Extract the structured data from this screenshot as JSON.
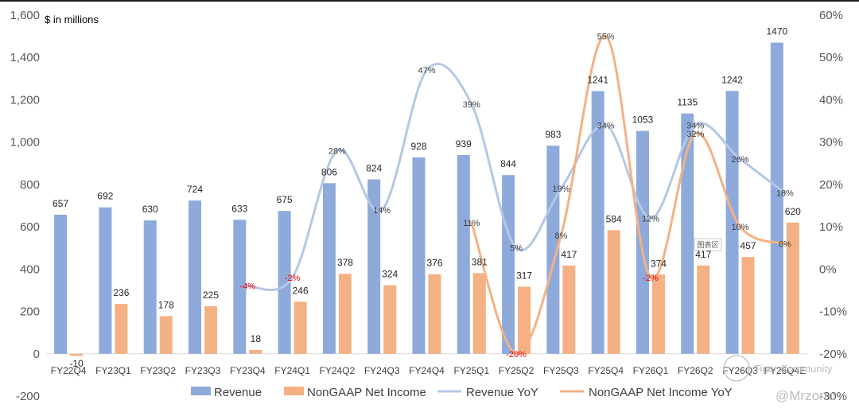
{
  "unit_label": "$ in millions",
  "plot_area_tag": "图表区",
  "watermarks": {
    "community": "Tiger Community",
    "handle": "@Mrzorro"
  },
  "colors": {
    "revenue_bar": "#8eaadb",
    "net_income_bar": "#f4b183",
    "revenue_yoy_line": "#b4c7e7",
    "net_income_yoy_line": "#f4b183",
    "negative_label": "#ff0000"
  },
  "chart_data": {
    "type": "bar",
    "categories": [
      "FY22Q4",
      "FY23Q1",
      "FY23Q2",
      "FY23Q3",
      "FY23Q4",
      "FY24Q1",
      "FY24Q2",
      "FY24Q3",
      "FY24Q4",
      "FY25Q1",
      "FY25Q2",
      "FY25Q3",
      "FY25Q4",
      "FY26Q1",
      "FY26Q2",
      "FY26Q3",
      "FY26Q4E"
    ],
    "y_left": {
      "ylim": [
        -200,
        1600
      ],
      "ticks": [
        "-200",
        "0",
        "200",
        "400",
        "600",
        "800",
        "1,000",
        "1,200",
        "1,400",
        "1,600"
      ]
    },
    "y_right": {
      "ylim": [
        -30,
        60
      ],
      "ticks": [
        "-30%",
        "-20%",
        "-10%",
        "0%",
        "10%",
        "20%",
        "30%",
        "40%",
        "50%",
        "60%"
      ]
    },
    "grid": false,
    "legend_position": "bottom",
    "series": [
      {
        "name": "Revenue",
        "kind": "bar",
        "axis": "left",
        "values": [
          657,
          692,
          630,
          724,
          633,
          675,
          806,
          824,
          928,
          939,
          844,
          983,
          1241,
          1053,
          1135,
          1242,
          1470
        ],
        "labels": [
          "657",
          "692",
          "630",
          "724",
          "633",
          "675",
          "806",
          "824",
          "928",
          "939",
          "844",
          "983",
          "1241",
          "1053",
          "1135",
          "1242",
          "1470"
        ]
      },
      {
        "name": "NonGAAP Net Income",
        "kind": "bar",
        "axis": "left",
        "values": [
          -10,
          236,
          178,
          225,
          18,
          246,
          378,
          324,
          376,
          381,
          317,
          417,
          584,
          374,
          417,
          457,
          620
        ],
        "labels": [
          "-10",
          "236",
          "178",
          "225",
          "18",
          "246",
          "378",
          "324",
          "376",
          "381",
          "317",
          "417",
          "584",
          "374",
          "417",
          "457",
          "620"
        ]
      },
      {
        "name": "Revenue YoY",
        "kind": "line",
        "axis": "right",
        "values": [
          null,
          null,
          null,
          null,
          -4,
          -2,
          28,
          14,
          47,
          39,
          5,
          19,
          34,
          12,
          34,
          26,
          18
        ],
        "labels": [
          null,
          null,
          null,
          null,
          "-4%",
          "-2%",
          "28%",
          "14%",
          "47%",
          "39%",
          "5%",
          "19%",
          "34%",
          "12%",
          "34%",
          "26%",
          "18%"
        ]
      },
      {
        "name": "NonGAAP Net Income YoY",
        "kind": "line",
        "axis": "right",
        "values": [
          null,
          null,
          null,
          null,
          null,
          null,
          null,
          null,
          null,
          11,
          -20,
          8,
          55,
          -2,
          32,
          10,
          6
        ],
        "labels": [
          null,
          null,
          null,
          null,
          null,
          null,
          null,
          null,
          null,
          "11%",
          "-20%",
          "8%",
          "55%",
          "-2%",
          "32%",
          "10%",
          "6%"
        ]
      }
    ]
  }
}
